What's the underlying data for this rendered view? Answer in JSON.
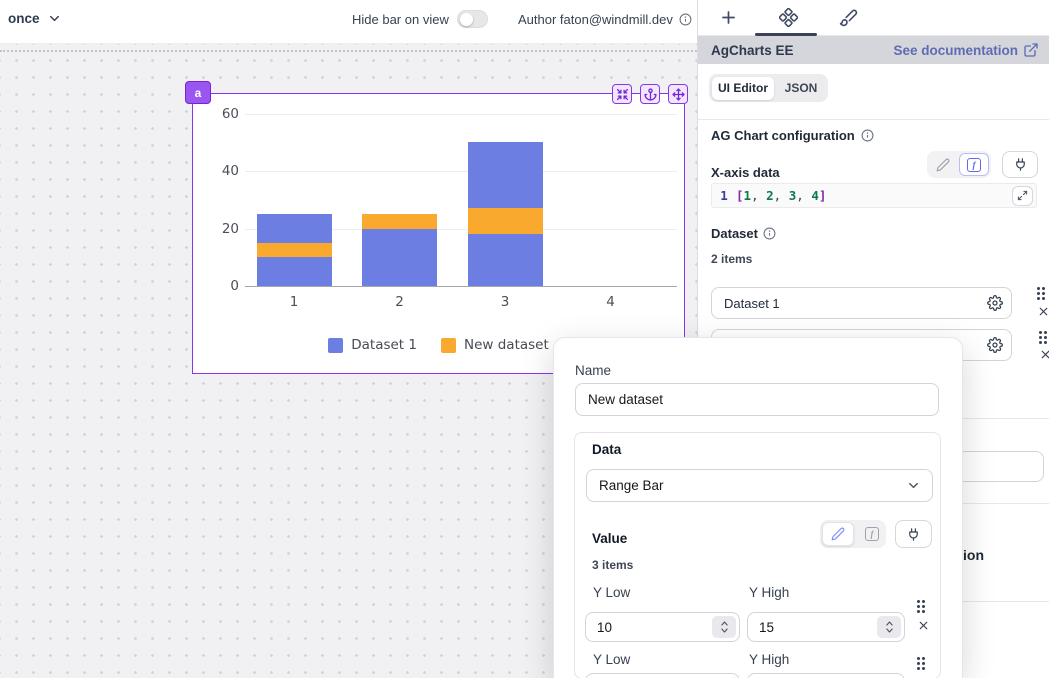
{
  "topbar": {
    "schedule_label": "once",
    "hide_bar_label": "Hide bar on view",
    "author_label": "Author faton@windmill.dev"
  },
  "component": {
    "id": "a"
  },
  "chart_data": {
    "type": "bar",
    "categories": [
      "1",
      "2",
      "3",
      "4"
    ],
    "series": [
      {
        "name": "Dataset 1",
        "type": "bar",
        "color": "#6c7ee1",
        "values": [
          25,
          20,
          50,
          null
        ]
      },
      {
        "name": "New dataset",
        "type": "range-bar",
        "color": "#f9a92d",
        "ranges": [
          [
            10,
            15
          ],
          [
            20,
            25
          ],
          [
            18,
            27
          ],
          null
        ]
      }
    ],
    "ylim": [
      0,
      60
    ],
    "yticks": [
      0,
      20,
      40,
      60
    ],
    "grid": true,
    "legend_position": "bottom"
  },
  "panel": {
    "title": "AgCharts EE",
    "doc_link_label": "See documentation",
    "tabs": {
      "ui_editor": "UI Editor",
      "json": "JSON"
    },
    "config_title": "AG Chart configuration",
    "xaxis": {
      "label": "X-axis data",
      "line_number": "1",
      "code": {
        "open": "[",
        "close": "]",
        "separator": ", ",
        "numbers": [
          "1",
          "2",
          "3",
          "4"
        ]
      }
    },
    "dataset": {
      "label": "Dataset",
      "count": "2 items",
      "rows": [
        {
          "name": "Dataset 1"
        },
        {
          "name": ""
        }
      ]
    },
    "fragment_text": "ion"
  },
  "modal": {
    "name_label": "Name",
    "name_value": "New dataset",
    "data_label": "Data",
    "data_value": "Range Bar",
    "value_label": "Value",
    "items_count": "3 items",
    "value_rows": [
      {
        "low_label": "Y Low",
        "high_label": "Y High",
        "low": "10",
        "high": "15"
      },
      {
        "low_label": "Y Low",
        "high_label": "Y High",
        "low": "",
        "high": ""
      }
    ]
  },
  "colors": {
    "accent_purple": "#8936e8",
    "bar_blue": "#6c7ee1",
    "bar_orange": "#f9a92d",
    "link_indigo": "#5d6cb3"
  }
}
